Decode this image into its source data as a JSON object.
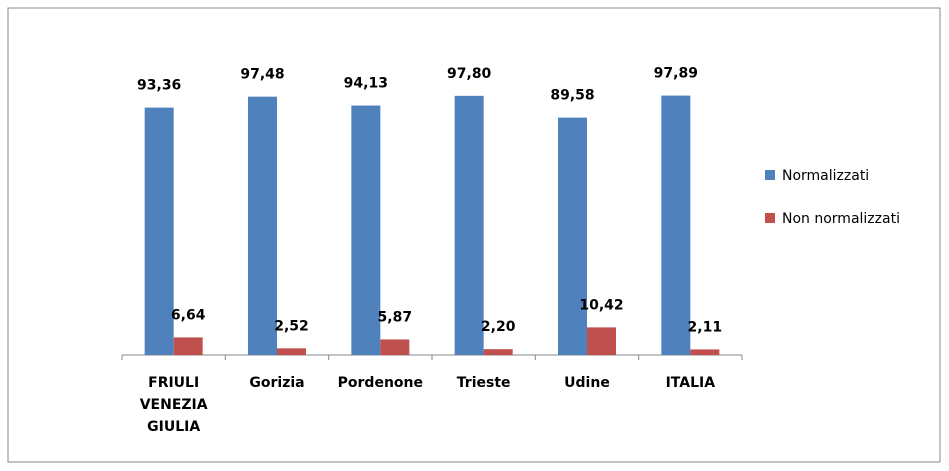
{
  "chart_data": {
    "type": "bar",
    "categories": [
      "FRIULI VENEZIA GIULIA",
      "Gorizia",
      "Pordenone",
      "Trieste",
      "Udine",
      "ITALIA"
    ],
    "series": [
      {
        "name": "Normalizzati",
        "color": "#4f81bd",
        "values": [
          93.36,
          97.48,
          94.13,
          97.8,
          89.58,
          97.89
        ],
        "value_labels": [
          "93,36",
          "97,48",
          "94,13",
          "97,80",
          "89,58",
          "97,89"
        ]
      },
      {
        "name": "Non normalizzati",
        "color": "#c0504d",
        "values": [
          6.64,
          2.52,
          5.87,
          2.2,
          10.42,
          2.11
        ],
        "value_labels": [
          "6,64",
          "2,52",
          "5,87",
          "2,20",
          "10,42",
          "2,11"
        ]
      }
    ],
    "ylim": [
      0,
      100
    ],
    "legend": "right"
  }
}
